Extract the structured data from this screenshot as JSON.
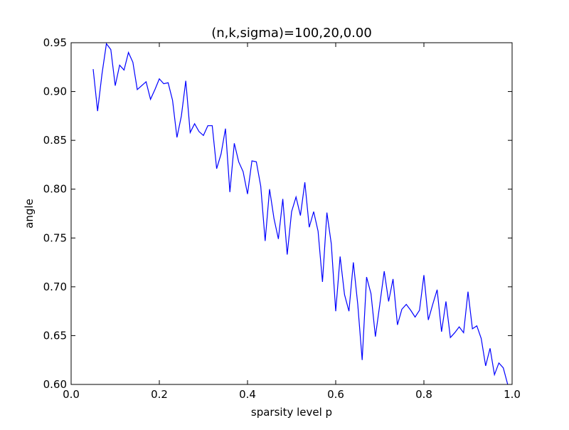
{
  "chart_data": {
    "type": "line",
    "title": "(n,k,sigma)=100,20,0.00",
    "xlabel": "sparsity level p",
    "ylabel": "angle",
    "xlim": [
      0.0,
      1.0
    ],
    "ylim": [
      0.6,
      0.95
    ],
    "xticks": [
      0.0,
      0.2,
      0.4,
      0.6,
      0.8,
      1.0
    ],
    "xtick_labels": [
      "0.0",
      "0.2",
      "0.4",
      "0.6",
      "0.8",
      "1.0"
    ],
    "yticks": [
      0.6,
      0.65,
      0.7,
      0.75,
      0.8,
      0.85,
      0.9,
      0.95
    ],
    "ytick_labels": [
      "0.60",
      "0.65",
      "0.70",
      "0.75",
      "0.80",
      "0.85",
      "0.90",
      "0.95"
    ],
    "grid": false,
    "series": [
      {
        "color": "#0000ff",
        "x": [
          0.05,
          0.06,
          0.07,
          0.08,
          0.09,
          0.1,
          0.11,
          0.12,
          0.13,
          0.14,
          0.15,
          0.16,
          0.17,
          0.18,
          0.19,
          0.2,
          0.21,
          0.22,
          0.23,
          0.24,
          0.25,
          0.26,
          0.27,
          0.28,
          0.29,
          0.3,
          0.31,
          0.32,
          0.33,
          0.34,
          0.35,
          0.36,
          0.37,
          0.38,
          0.39,
          0.4,
          0.41,
          0.42,
          0.43,
          0.44,
          0.45,
          0.46,
          0.47,
          0.48,
          0.49,
          0.5,
          0.51,
          0.52,
          0.53,
          0.54,
          0.55,
          0.56,
          0.57,
          0.58,
          0.59,
          0.6,
          0.61,
          0.62,
          0.63,
          0.64,
          0.65,
          0.66,
          0.67,
          0.68,
          0.69,
          0.7,
          0.71,
          0.72,
          0.73,
          0.74,
          0.75,
          0.76,
          0.77,
          0.78,
          0.79,
          0.8,
          0.81,
          0.82,
          0.83,
          0.84,
          0.85,
          0.86,
          0.87,
          0.88,
          0.89,
          0.9,
          0.91,
          0.92,
          0.93,
          0.94,
          0.95,
          0.96,
          0.97,
          0.98,
          0.99
        ],
        "y": [
          0.923,
          0.88,
          0.918,
          0.949,
          0.943,
          0.906,
          0.927,
          0.922,
          0.94,
          0.93,
          0.902,
          0.906,
          0.91,
          0.892,
          0.902,
          0.913,
          0.908,
          0.909,
          0.891,
          0.853,
          0.875,
          0.911,
          0.858,
          0.867,
          0.859,
          0.855,
          0.865,
          0.865,
          0.821,
          0.836,
          0.862,
          0.797,
          0.847,
          0.828,
          0.818,
          0.795,
          0.829,
          0.828,
          0.803,
          0.747,
          0.8,
          0.77,
          0.749,
          0.79,
          0.733,
          0.777,
          0.792,
          0.773,
          0.807,
          0.761,
          0.777,
          0.757,
          0.705,
          0.776,
          0.744,
          0.675,
          0.731,
          0.692,
          0.675,
          0.725,
          0.682,
          0.625,
          0.71,
          0.693,
          0.649,
          0.682,
          0.716,
          0.685,
          0.708,
          0.661,
          0.677,
          0.682,
          0.676,
          0.669,
          0.676,
          0.712,
          0.666,
          0.682,
          0.697,
          0.654,
          0.685,
          0.648,
          0.653,
          0.659,
          0.653,
          0.695,
          0.657,
          0.66,
          0.647,
          0.619,
          0.637,
          0.61,
          0.622,
          0.617,
          0.6
        ]
      }
    ]
  }
}
